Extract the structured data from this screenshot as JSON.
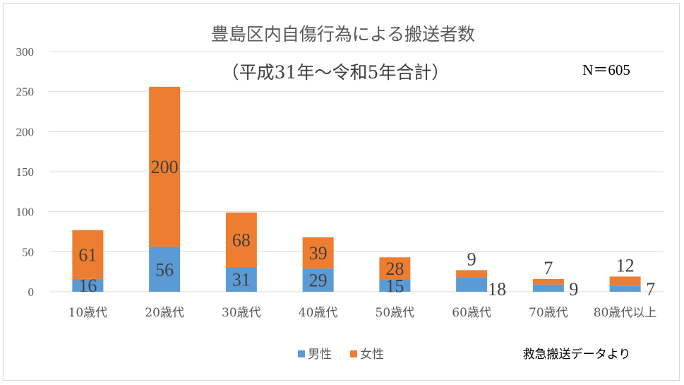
{
  "chart_data": {
    "type": "bar",
    "stacked": true,
    "title": "豊島区内自傷行為による搬送者数",
    "subtitle": "（平成31年～令和5年合計）",
    "note": "N＝605",
    "source": "救急搬送データより",
    "categories": [
      "10歳代",
      "20歳代",
      "30歳代",
      "40歳代",
      "50歳代",
      "60歳代",
      "70歳代",
      "80歳代以上"
    ],
    "series": [
      {
        "name": "男性",
        "color": "#5b9bd5",
        "values": [
          16,
          56,
          31,
          29,
          15,
          18,
          9,
          7
        ]
      },
      {
        "name": "女性",
        "color": "#ed7d31",
        "values": [
          61,
          200,
          68,
          39,
          28,
          9,
          7,
          12
        ]
      }
    ],
    "ylim": [
      0,
      300
    ],
    "yticks": [
      "0",
      "50",
      "100",
      "150",
      "200",
      "250",
      "300"
    ],
    "grid": true,
    "legend": "bottom"
  }
}
